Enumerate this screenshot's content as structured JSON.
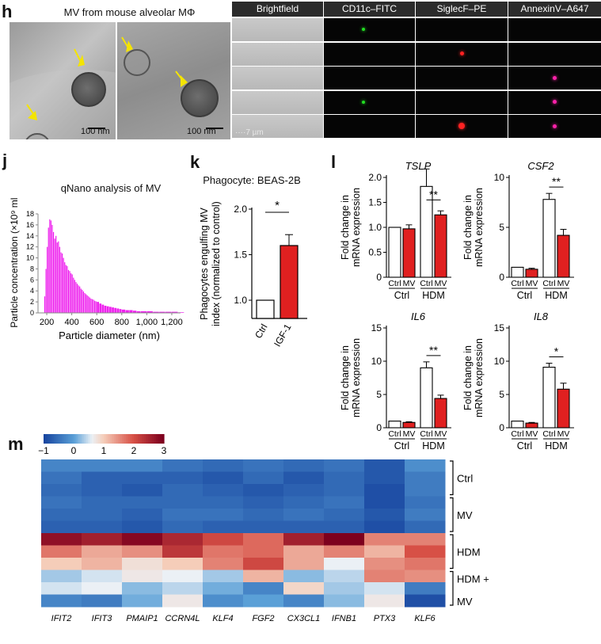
{
  "panels": {
    "h": "h",
    "j": "j",
    "k": "k",
    "l": "l",
    "m": "m"
  },
  "panel_h": {
    "title": "MV from mouse alveolar MΦ",
    "scalebar_left": "100 nm",
    "scalebar_right": "100 nm",
    "imaging_headers": [
      "Brightfield",
      "CD11c–FITC",
      "SiglecF–PE",
      "AnnexinV–A647"
    ],
    "imaging_scale": "7 µm",
    "row_markers": [
      {
        "fitc": true,
        "pe": false,
        "a647": false
      },
      {
        "fitc": false,
        "pe": true,
        "a647": false
      },
      {
        "fitc": false,
        "pe": false,
        "a647": true
      },
      {
        "fitc": true,
        "pe": false,
        "a647": true
      },
      {
        "fitc": false,
        "pe": true,
        "a647": true
      }
    ],
    "colors": {
      "fitc": "#22dd22",
      "pe": "#ff2222",
      "a647": "#ff22aa"
    }
  },
  "panel_j": {
    "title": "qNano analysis of MV",
    "xlabel": "Particle diameter (nm)",
    "ylabel": "Particle concentration (×10⁹ ml⁻¹)",
    "xticks": [
      "200",
      "400",
      "600",
      "800",
      "1,000",
      "1,200"
    ],
    "yticks": [
      "0",
      "2",
      "4",
      "6",
      "8",
      "10",
      "12",
      "14",
      "16",
      "18"
    ]
  },
  "panel_k": {
    "title": "Phagocyte: BEAS-2B",
    "ylabel_1": "Phagocytes engulfing MV",
    "ylabel_2": "index (normalized to control)",
    "yticks": [
      "1.0",
      "1.5",
      "2.0"
    ],
    "categories": [
      "Ctrl",
      "IGF-1"
    ],
    "sig": "*"
  },
  "panel_l": {
    "ylabel_1": "Fold change in",
    "ylabel_2": "mRNA expression",
    "sub_ctrl": "Ctrl",
    "sub_mv": "MV",
    "group_ctrl": "Ctrl",
    "group_hdm": "HDM",
    "charts": [
      {
        "gene": "TSLP",
        "yticks": [
          "0",
          "0.5",
          "1.0",
          "1.5",
          "2.0"
        ],
        "sig": "**"
      },
      {
        "gene": "CSF2",
        "yticks": [
          "0",
          "5",
          "10"
        ],
        "sig": "**"
      },
      {
        "gene": "IL6",
        "yticks": [
          "0",
          "5",
          "10",
          "15"
        ],
        "sig": "**"
      },
      {
        "gene": "IL8",
        "yticks": [
          "0",
          "5",
          "10",
          "15"
        ],
        "sig": "*"
      }
    ]
  },
  "panel_m": {
    "colorbar_ticks": [
      "−1",
      "0",
      "1",
      "2",
      "3"
    ],
    "genes": [
      "IFIT2",
      "IFIT3",
      "PMAIP1",
      "CCRN4L",
      "KLF4",
      "FGF2",
      "CX3CL1",
      "IFNB1",
      "PTX3",
      "KLF6"
    ],
    "groups": [
      "Ctrl",
      "MV",
      "HDM",
      "HDM +",
      "MV"
    ]
  },
  "chart_data": [
    {
      "type": "bar",
      "title": "qNano analysis of MV",
      "xlabel": "Particle diameter (nm)",
      "ylabel": "Particle concentration (×10⁹ ml⁻¹)",
      "xlim": [
        130,
        1270
      ],
      "ylim": [
        0,
        18
      ],
      "x": [
        180,
        190,
        200,
        210,
        220,
        230,
        240,
        250,
        260,
        270,
        280,
        290,
        300,
        310,
        320,
        330,
        340,
        350,
        360,
        370,
        380,
        390,
        400,
        410,
        420,
        430,
        440,
        450,
        460,
        470,
        480,
        490,
        500,
        510,
        520,
        530,
        540,
        550,
        560,
        570,
        580,
        590,
        600,
        620,
        640,
        660,
        680,
        700,
        720,
        740,
        760,
        780,
        800,
        830,
        860,
        890,
        920,
        950,
        1000,
        1050,
        1100,
        1150,
        1200,
        1250
      ],
      "values": [
        3,
        8,
        12,
        15.5,
        17,
        16.8,
        16,
        14.7,
        13.5,
        14,
        12.8,
        13,
        12,
        11,
        10.8,
        10,
        9.2,
        8.7,
        8.5,
        7.8,
        7.6,
        7.2,
        7,
        6.4,
        6,
        5.6,
        5.3,
        5,
        4.8,
        4.4,
        4.2,
        3.9,
        3.6,
        3.4,
        3.2,
        3,
        2.8,
        2.6,
        2.5,
        2.4,
        2.2,
        2.1,
        2,
        1.7,
        1.5,
        1.3,
        1.2,
        1.1,
        1.0,
        0.9,
        0.8,
        0.7,
        0.6,
        0.5,
        0.5,
        0.4,
        0.3,
        0.3,
        0.3,
        0.2,
        0.2,
        0.2,
        0.2,
        0.1
      ]
    },
    {
      "type": "bar",
      "title": "Phagocyte: BEAS-2B",
      "categories": [
        "Ctrl",
        "IGF-1"
      ],
      "values": [
        1.0,
        1.6
      ],
      "errors": [
        0,
        0.12
      ],
      "ylim": [
        0.8,
        2.0
      ],
      "colors": [
        "#ffffff",
        "#e02020"
      ]
    },
    {
      "type": "bar",
      "title": "TSLP",
      "categories": [
        "Ctrl Ctrl",
        "Ctrl MV",
        "HDM Ctrl",
        "HDM MV"
      ],
      "values": [
        1.0,
        0.97,
        1.82,
        1.25
      ],
      "errors": [
        0,
        0.08,
        0.35,
        0.08
      ],
      "ylim": [
        0,
        2.0
      ]
    },
    {
      "type": "bar",
      "title": "CSF2",
      "categories": [
        "Ctrl Ctrl",
        "Ctrl MV",
        "HDM Ctrl",
        "HDM MV"
      ],
      "values": [
        1.0,
        0.8,
        7.8,
        4.2
      ],
      "errors": [
        0,
        0.1,
        0.6,
        0.6
      ],
      "ylim": [
        0,
        10
      ]
    },
    {
      "type": "bar",
      "title": "IL6",
      "categories": [
        "Ctrl Ctrl",
        "Ctrl MV",
        "HDM Ctrl",
        "HDM MV"
      ],
      "values": [
        1.0,
        0.8,
        9.0,
        4.4
      ],
      "errors": [
        0,
        0.1,
        0.9,
        0.5
      ],
      "ylim": [
        0,
        15
      ]
    },
    {
      "type": "bar",
      "title": "IL8",
      "categories": [
        "Ctrl Ctrl",
        "Ctrl MV",
        "HDM Ctrl",
        "HDM MV"
      ],
      "values": [
        1.0,
        0.7,
        9.1,
        5.8
      ],
      "errors": [
        0,
        0.1,
        0.6,
        0.9
      ],
      "ylim": [
        0,
        15
      ]
    },
    {
      "type": "heatmap",
      "columns": [
        "IFIT2",
        "IFIT3",
        "PMAIP1",
        "CCRN4L",
        "KLF4",
        "FGF2",
        "CX3CL1",
        "IFNB1",
        "PTX3",
        "KLF6"
      ],
      "rows": [
        "Ctrl",
        "Ctrl",
        "Ctrl",
        "MV",
        "MV",
        "MV",
        "HDM",
        "HDM",
        "HDM",
        "HDM + MV",
        "HDM + MV",
        "HDM + MV"
      ],
      "zlim": [
        -1,
        3
      ],
      "values": [
        [
          -0.3,
          -0.3,
          -0.3,
          -0.5,
          -0.6,
          -0.5,
          -0.6,
          -0.5,
          -0.8,
          -0.2
        ],
        [
          -0.5,
          -0.7,
          -0.7,
          -0.7,
          -0.8,
          -0.6,
          -0.8,
          -0.6,
          -0.8,
          -0.4
        ],
        [
          -0.6,
          -0.7,
          -0.8,
          -0.6,
          -0.7,
          -0.8,
          -0.7,
          -0.6,
          -0.9,
          -0.4
        ],
        [
          -0.5,
          -0.6,
          -0.6,
          -0.6,
          -0.6,
          -0.7,
          -0.6,
          -0.5,
          -0.9,
          -0.5
        ],
        [
          -0.6,
          -0.6,
          -0.7,
          -0.5,
          -0.5,
          -0.6,
          -0.5,
          -0.6,
          -0.8,
          -0.4
        ],
        [
          -0.7,
          -0.7,
          -0.8,
          -0.6,
          -0.7,
          -0.7,
          -0.7,
          -0.7,
          -0.9,
          -0.6
        ],
        [
          2.8,
          2.6,
          2.9,
          2.5,
          2.1,
          1.8,
          2.6,
          3.0,
          1.6,
          1.6
        ],
        [
          1.7,
          1.3,
          1.5,
          2.3,
          1.7,
          1.8,
          1.3,
          1.6,
          1.2,
          2.0
        ],
        [
          1.0,
          1.2,
          0.8,
          1.0,
          1.6,
          2.1,
          1.3,
          0.6,
          1.5,
          1.7
        ],
        [
          0.3,
          0.5,
          0.7,
          0.6,
          0.3,
          1.2,
          0.2,
          0.4,
          1.6,
          1.5
        ],
        [
          0.5,
          0.6,
          0.2,
          0.4,
          0.1,
          -0.3,
          0.9,
          0.3,
          0.5,
          -0.4
        ],
        [
          -0.3,
          -0.4,
          0.1,
          0.7,
          -0.2,
          0.0,
          -0.3,
          0.2,
          0.7,
          -0.9
        ]
      ]
    }
  ]
}
